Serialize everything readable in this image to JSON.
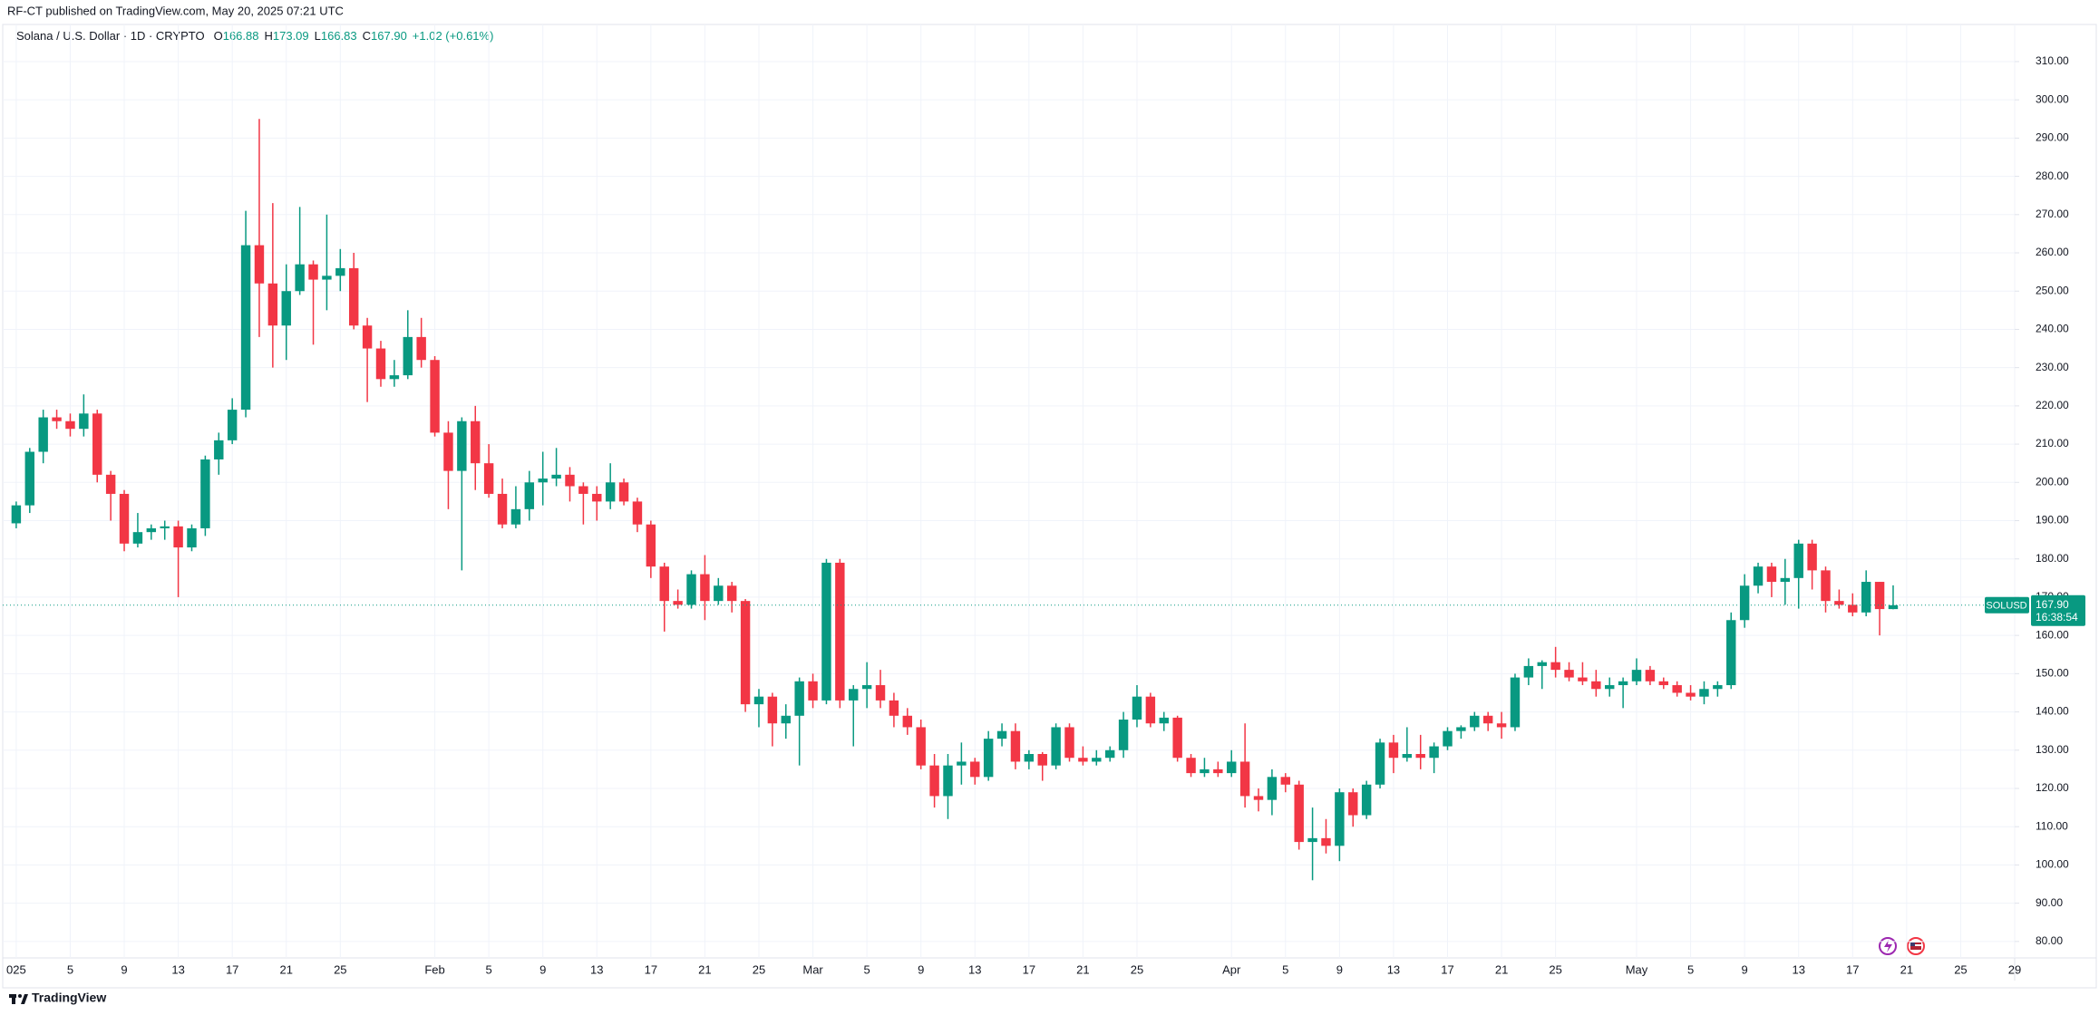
{
  "header": {
    "published": "RF-CT published on TradingView.com, May 20, 2025 07:21 UTC"
  },
  "chart_data": {
    "type": "candlestick",
    "title": "Solana / U.S. Dollar · 1D · CRYPTO",
    "ohlc_legend": [
      {
        "label": "O",
        "value": "166.88"
      },
      {
        "label": "H",
        "value": "173.09"
      },
      {
        "label": "L",
        "value": "166.83"
      },
      {
        "label": "C",
        "value": "167.90"
      },
      {
        "label": "",
        "value": "+1.02 (+0.61%)"
      }
    ],
    "x": [
      "2025-01-01",
      "2025-01-02",
      "2025-01-03",
      "2025-01-04",
      "2025-01-05",
      "2025-01-06",
      "2025-01-07",
      "2025-01-08",
      "2025-01-09",
      "2025-01-10",
      "2025-01-11",
      "2025-01-12",
      "2025-01-13",
      "2025-01-14",
      "2025-01-15",
      "2025-01-16",
      "2025-01-17",
      "2025-01-18",
      "2025-01-19",
      "2025-01-20",
      "2025-01-21",
      "2025-01-22",
      "2025-01-23",
      "2025-01-24",
      "2025-01-25",
      "2025-01-26",
      "2025-01-27",
      "2025-01-28",
      "2025-01-29",
      "2025-01-30",
      "2025-01-31",
      "2025-02-01",
      "2025-02-02",
      "2025-02-03",
      "2025-02-04",
      "2025-02-05",
      "2025-02-06",
      "2025-02-07",
      "2025-02-08",
      "2025-02-09",
      "2025-02-10",
      "2025-02-11",
      "2025-02-12",
      "2025-02-13",
      "2025-02-14",
      "2025-02-15",
      "2025-02-16",
      "2025-02-17",
      "2025-02-18",
      "2025-02-19",
      "2025-02-20",
      "2025-02-21",
      "2025-02-22",
      "2025-02-23",
      "2025-02-24",
      "2025-02-25",
      "2025-02-26",
      "2025-02-27",
      "2025-02-28",
      "2025-03-01",
      "2025-03-02",
      "2025-03-03",
      "2025-03-04",
      "2025-03-05",
      "2025-03-06",
      "2025-03-07",
      "2025-03-08",
      "2025-03-09",
      "2025-03-10",
      "2025-03-11",
      "2025-03-12",
      "2025-03-13",
      "2025-03-14",
      "2025-03-15",
      "2025-03-16",
      "2025-03-17",
      "2025-03-18",
      "2025-03-19",
      "2025-03-20",
      "2025-03-21",
      "2025-03-22",
      "2025-03-23",
      "2025-03-24",
      "2025-03-25",
      "2025-03-26",
      "2025-03-27",
      "2025-03-28",
      "2025-03-29",
      "2025-03-30",
      "2025-03-31",
      "2025-04-01",
      "2025-04-02",
      "2025-04-03",
      "2025-04-04",
      "2025-04-05",
      "2025-04-06",
      "2025-04-07",
      "2025-04-08",
      "2025-04-09",
      "2025-04-10",
      "2025-04-11",
      "2025-04-12",
      "2025-04-13",
      "2025-04-14",
      "2025-04-15",
      "2025-04-16",
      "2025-04-17",
      "2025-04-18",
      "2025-04-19",
      "2025-04-20",
      "2025-04-21",
      "2025-04-22",
      "2025-04-23",
      "2025-04-24",
      "2025-04-25",
      "2025-04-26",
      "2025-04-27",
      "2025-04-28",
      "2025-04-29",
      "2025-04-30",
      "2025-05-01",
      "2025-05-02",
      "2025-05-03",
      "2025-05-04",
      "2025-05-05",
      "2025-05-06",
      "2025-05-07",
      "2025-05-08",
      "2025-05-09",
      "2025-05-10",
      "2025-05-11",
      "2025-05-12",
      "2025-05-13",
      "2025-05-14",
      "2025-05-15",
      "2025-05-16",
      "2025-05-17",
      "2025-05-18",
      "2025-05-19",
      "2025-05-20"
    ],
    "open": [
      189.3,
      194,
      208,
      217,
      216,
      214,
      218,
      202,
      197,
      184,
      187,
      188,
      188.5,
      183,
      188,
      206,
      211,
      219,
      262,
      252,
      241,
      250,
      257,
      253,
      254,
      256,
      241,
      235,
      227,
      228,
      238,
      232,
      213,
      203,
      216,
      205,
      197,
      189,
      193,
      200,
      201,
      202,
      199,
      197,
      195,
      200,
      195,
      189,
      178,
      169,
      168,
      176,
      169,
      173,
      169,
      142,
      144,
      137,
      139,
      148,
      143,
      179,
      143,
      146,
      147,
      143,
      139,
      136,
      126,
      118,
      126,
      127,
      123,
      133,
      135,
      127,
      129,
      126,
      136,
      128,
      127,
      128,
      130,
      138,
      144,
      137,
      138.5,
      128,
      124,
      125,
      124,
      127,
      118,
      117,
      123,
      121,
      106,
      107,
      105,
      119,
      113,
      121,
      132,
      128,
      129,
      128,
      131,
      135,
      136,
      139,
      137,
      136,
      149,
      152,
      153,
      151,
      149,
      148,
      146,
      147,
      148,
      151,
      148,
      147,
      145,
      144,
      146,
      147,
      164,
      173,
      178,
      174,
      175,
      184,
      177,
      169,
      168,
      166,
      174,
      166.88
    ],
    "high": [
      195,
      209,
      219,
      219,
      218,
      223,
      219,
      203,
      198,
      192,
      189,
      190,
      190,
      189,
      207,
      213,
      222,
      271,
      295,
      273,
      257,
      272,
      258,
      270,
      261,
      260,
      243,
      237,
      232,
      245,
      243,
      233,
      216,
      217,
      220,
      210,
      201,
      199,
      203,
      208,
      209,
      204,
      200,
      199,
      205,
      201,
      196,
      190,
      179,
      172,
      177,
      181,
      175,
      174,
      169.5,
      146,
      145,
      142,
      149,
      150,
      180,
      180,
      147,
      153,
      151,
      145,
      141,
      138,
      129,
      129,
      132,
      128,
      135,
      137,
      137,
      130,
      129.5,
      137,
      137,
      131,
      130,
      131,
      140,
      147,
      145,
      140,
      139,
      129,
      128,
      127,
      130,
      137,
      120,
      125,
      124,
      122,
      115,
      112,
      120,
      120,
      122,
      133,
      134,
      136,
      134,
      132,
      136,
      136.5,
      140,
      140,
      140,
      150,
      154,
      153.5,
      157,
      153,
      153,
      151,
      149,
      149,
      154,
      152,
      149,
      148,
      147,
      148,
      148,
      166,
      176,
      179,
      179,
      180,
      185,
      185,
      178,
      172,
      171,
      177,
      174,
      173.09
    ],
    "low": [
      188,
      192,
      205,
      214,
      212,
      212,
      200,
      190,
      182,
      183,
      185,
      185,
      170,
      182,
      186,
      202,
      210,
      217,
      238,
      230,
      232,
      249,
      236,
      245,
      250,
      240,
      221,
      225,
      225,
      227,
      230,
      212,
      193,
      177,
      198,
      196,
      188,
      188,
      190,
      194,
      199,
      195,
      189,
      190,
      193,
      194,
      187,
      175,
      161,
      167,
      167,
      164,
      168,
      166,
      140,
      136,
      131,
      133,
      126,
      141,
      142,
      141,
      131,
      141,
      141,
      136,
      134,
      125,
      115,
      112,
      121,
      121,
      122,
      131,
      125,
      125,
      122,
      125,
      127,
      126,
      126,
      127,
      128,
      136,
      136,
      135,
      127,
      123,
      123,
      123,
      123,
      115,
      114,
      113,
      119,
      104,
      96,
      103,
      101,
      110,
      112,
      120,
      124,
      127,
      125,
      124,
      130,
      133,
      135,
      135,
      133,
      135,
      147,
      146,
      149,
      148,
      147,
      144,
      144,
      141,
      147,
      147,
      146,
      144,
      143,
      142,
      144,
      146,
      162,
      171,
      170,
      168,
      167,
      172,
      166,
      167,
      165,
      165,
      160,
      166.83
    ],
    "close": [
      194,
      208,
      217,
      216,
      214,
      218,
      202,
      197,
      184,
      187,
      188,
      188.5,
      183,
      188,
      206,
      211,
      219,
      262,
      252,
      241,
      250,
      257,
      253,
      254,
      256,
      241,
      235,
      227,
      228,
      238,
      232,
      213,
      203,
      216,
      205,
      197,
      189,
      193,
      200,
      201,
      202,
      199,
      197,
      195,
      200,
      195,
      189,
      178,
      169,
      168,
      176,
      169,
      173,
      169,
      142,
      144,
      137,
      139,
      148,
      143,
      179,
      143,
      146,
      147,
      143,
      139,
      136,
      126,
      118,
      126,
      127,
      123,
      133,
      135,
      127,
      129,
      126,
      136,
      128,
      127,
      128,
      130,
      138,
      144,
      137,
      138.5,
      128,
      124,
      125,
      124,
      127,
      118,
      117,
      123,
      121,
      106,
      107,
      105,
      119,
      113,
      121,
      132,
      128,
      129,
      128,
      131,
      135,
      136,
      139,
      137,
      136,
      149,
      152,
      153,
      151,
      149,
      148,
      146,
      147,
      148,
      151,
      148,
      147,
      145,
      144,
      146,
      147,
      164,
      173,
      178,
      174,
      175,
      184,
      177,
      169,
      168,
      166,
      174,
      166.88,
      167.9
    ],
    "up_color": "#089981",
    "down_color": "#f23645",
    "xlim": [
      "2024-12-31",
      "2025-05-29"
    ],
    "ylim": [
      75.7,
      319.7
    ],
    "yticks": [
      {
        "value": 80,
        "label": "80.00"
      },
      {
        "value": 90,
        "label": "90.00"
      },
      {
        "value": 100,
        "label": "100.00"
      },
      {
        "value": 110,
        "label": "110.00"
      },
      {
        "value": 120,
        "label": "120.00"
      },
      {
        "value": 130,
        "label": "130.00"
      },
      {
        "value": 140,
        "label": "140.00"
      },
      {
        "value": 150,
        "label": "150.00"
      },
      {
        "value": 160,
        "label": "160.00"
      },
      {
        "value": 170,
        "label": "170.00"
      },
      {
        "value": 180,
        "label": "180.00"
      },
      {
        "value": 190,
        "label": "190.00"
      },
      {
        "value": 200,
        "label": "200.00"
      },
      {
        "value": 210,
        "label": "210.00"
      },
      {
        "value": 220,
        "label": "220.00"
      },
      {
        "value": 230,
        "label": "230.00"
      },
      {
        "value": 240,
        "label": "240.00"
      },
      {
        "value": 250,
        "label": "250.00"
      },
      {
        "value": 260,
        "label": "260.00"
      },
      {
        "value": 270,
        "label": "270.00"
      },
      {
        "value": 280,
        "label": "280.00"
      },
      {
        "value": 290,
        "label": "290.00"
      },
      {
        "value": 300,
        "label": "300.00"
      },
      {
        "value": 310,
        "label": "310.00"
      }
    ],
    "xticks": [
      {
        "value": "2025-01-01",
        "label": "025"
      },
      {
        "value": "2025-01-05",
        "label": "5"
      },
      {
        "value": "2025-01-09",
        "label": "9"
      },
      {
        "value": "2025-01-13",
        "label": "13"
      },
      {
        "value": "2025-01-17",
        "label": "17"
      },
      {
        "value": "2025-01-21",
        "label": "21"
      },
      {
        "value": "2025-01-25",
        "label": "25"
      },
      {
        "value": "2025-02-01",
        "label": "Feb"
      },
      {
        "value": "2025-02-05",
        "label": "5"
      },
      {
        "value": "2025-02-09",
        "label": "9"
      },
      {
        "value": "2025-02-13",
        "label": "13"
      },
      {
        "value": "2025-02-17",
        "label": "17"
      },
      {
        "value": "2025-02-21",
        "label": "21"
      },
      {
        "value": "2025-02-25",
        "label": "25"
      },
      {
        "value": "2025-03-01",
        "label": "Mar"
      },
      {
        "value": "2025-03-05",
        "label": "5"
      },
      {
        "value": "2025-03-09",
        "label": "9"
      },
      {
        "value": "2025-03-13",
        "label": "13"
      },
      {
        "value": "2025-03-17",
        "label": "17"
      },
      {
        "value": "2025-03-21",
        "label": "21"
      },
      {
        "value": "2025-03-25",
        "label": "25"
      },
      {
        "value": "2025-04-01",
        "label": "Apr"
      },
      {
        "value": "2025-04-05",
        "label": "5"
      },
      {
        "value": "2025-04-09",
        "label": "9"
      },
      {
        "value": "2025-04-13",
        "label": "13"
      },
      {
        "value": "2025-04-17",
        "label": "17"
      },
      {
        "value": "2025-04-21",
        "label": "21"
      },
      {
        "value": "2025-04-25",
        "label": "25"
      },
      {
        "value": "2025-05-01",
        "label": "May"
      },
      {
        "value": "2025-05-05",
        "label": "5"
      },
      {
        "value": "2025-05-09",
        "label": "9"
      },
      {
        "value": "2025-05-13",
        "label": "13"
      },
      {
        "value": "2025-05-17",
        "label": "17"
      },
      {
        "value": "2025-05-21",
        "label": "21"
      },
      {
        "value": "2025-05-25",
        "label": "25"
      },
      {
        "value": "2025-05-29",
        "label": "29"
      }
    ],
    "grid": true,
    "price_tag": {
      "symbol": "SOLUSD",
      "price": "167.90",
      "countdown": "16:38:54"
    }
  },
  "footer": {
    "brand": "TradingView"
  }
}
